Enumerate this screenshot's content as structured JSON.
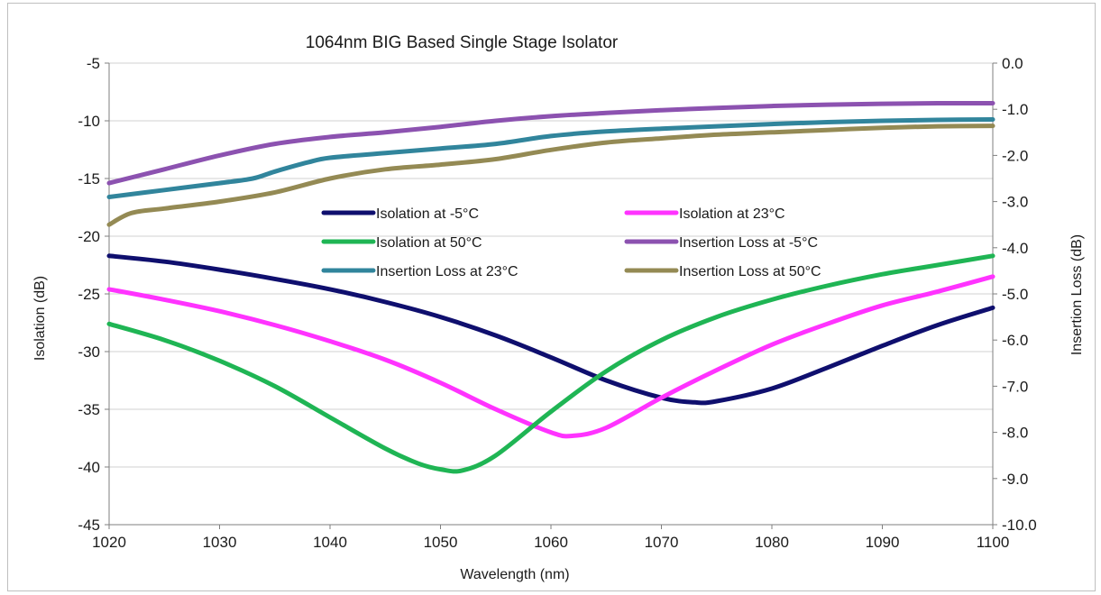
{
  "chart_data": {
    "type": "line",
    "title": "1064nm BIG Based Single Stage Isolator",
    "xlabel": "Wavelength (nm)",
    "ylabel": "Isolation (dB)",
    "y2label": "Insertion Loss (dB)",
    "xlim": [
      1020,
      1100
    ],
    "ylim": [
      -45,
      -5
    ],
    "y2lim": [
      -10.0,
      0.0
    ],
    "x_ticks": [
      "1020",
      "1030",
      "1040",
      "1050",
      "1060",
      "1070",
      "1080",
      "1090",
      "1100"
    ],
    "y_ticks": [
      "-5",
      "-10",
      "-15",
      "-20",
      "-25",
      "-30",
      "-35",
      "-40",
      "-45"
    ],
    "y2_ticks": [
      "0.0",
      "-1.0",
      "-2.0",
      "-3.0",
      "-4.0",
      "-5.0",
      "-6.0",
      "-7.0",
      "-8.0",
      "-9.0",
      "-10.0"
    ],
    "grid": true,
    "legend_position": "center-top",
    "series": [
      {
        "name": "Isolation at -5°C",
        "axis": "left",
        "color": "#0f0f6e",
        "x": [
          1020,
          1025,
          1030,
          1035,
          1040,
          1045,
          1050,
          1055,
          1060,
          1065,
          1070,
          1073,
          1075,
          1080,
          1085,
          1090,
          1095,
          1100
        ],
        "y": [
          -21.7,
          -22.2,
          -22.9,
          -23.7,
          -24.6,
          -25.7,
          -27.0,
          -28.6,
          -30.5,
          -32.5,
          -34.0,
          -34.4,
          -34.3,
          -33.2,
          -31.4,
          -29.5,
          -27.7,
          -26.2
        ]
      },
      {
        "name": "Isolation at 23°C",
        "axis": "left",
        "color": "#ff33ff",
        "x": [
          1020,
          1025,
          1030,
          1035,
          1040,
          1045,
          1050,
          1055,
          1060,
          1062,
          1065,
          1070,
          1075,
          1080,
          1085,
          1090,
          1095,
          1100
        ],
        "y": [
          -24.6,
          -25.5,
          -26.5,
          -27.7,
          -29.1,
          -30.7,
          -32.7,
          -35.0,
          -37.0,
          -37.3,
          -36.6,
          -34.0,
          -31.6,
          -29.4,
          -27.6,
          -26.0,
          -24.8,
          -23.5
        ]
      },
      {
        "name": "Isolation at 50°C",
        "axis": "left",
        "color": "#1fb554",
        "x": [
          1020,
          1025,
          1030,
          1035,
          1040,
          1045,
          1048,
          1050,
          1052,
          1055,
          1060,
          1065,
          1070,
          1075,
          1080,
          1085,
          1090,
          1095,
          1100
        ],
        "y": [
          -27.6,
          -29.0,
          -30.8,
          -33.0,
          -35.7,
          -38.4,
          -39.7,
          -40.2,
          -40.3,
          -39.0,
          -35.2,
          -31.7,
          -29.0,
          -27.0,
          -25.5,
          -24.3,
          -23.3,
          -22.5,
          -21.7
        ]
      },
      {
        "name": "Insertion Loss at -5°C",
        "axis": "right",
        "color": "#8c52b0",
        "x": [
          1020,
          1025,
          1030,
          1035,
          1040,
          1045,
          1050,
          1055,
          1060,
          1065,
          1070,
          1075,
          1080,
          1085,
          1090,
          1095,
          1100
        ],
        "y": [
          -2.6,
          -2.3,
          -2.0,
          -1.75,
          -1.6,
          -1.5,
          -1.38,
          -1.25,
          -1.15,
          -1.08,
          -1.02,
          -0.97,
          -0.93,
          -0.9,
          -0.88,
          -0.87,
          -0.87
        ]
      },
      {
        "name": "Insertion Loss at 23°C",
        "axis": "right",
        "color": "#31859c",
        "x": [
          1020,
          1025,
          1030,
          1033,
          1035,
          1038,
          1040,
          1045,
          1050,
          1055,
          1060,
          1065,
          1070,
          1075,
          1080,
          1085,
          1090,
          1095,
          1100
        ],
        "y": [
          -2.9,
          -2.75,
          -2.6,
          -2.5,
          -2.35,
          -2.15,
          -2.05,
          -1.95,
          -1.85,
          -1.75,
          -1.58,
          -1.48,
          -1.42,
          -1.37,
          -1.32,
          -1.28,
          -1.25,
          -1.23,
          -1.22
        ]
      },
      {
        "name": "Insertion Loss at 50°C",
        "axis": "right",
        "color": "#948a54",
        "x": [
          1020,
          1022,
          1025,
          1030,
          1035,
          1040,
          1045,
          1050,
          1055,
          1060,
          1065,
          1070,
          1075,
          1080,
          1085,
          1090,
          1095,
          1100
        ],
        "y": [
          -3.5,
          -3.25,
          -3.15,
          -3.0,
          -2.8,
          -2.5,
          -2.3,
          -2.2,
          -2.08,
          -1.88,
          -1.72,
          -1.63,
          -1.55,
          -1.5,
          -1.45,
          -1.4,
          -1.37,
          -1.36
        ]
      }
    ]
  }
}
